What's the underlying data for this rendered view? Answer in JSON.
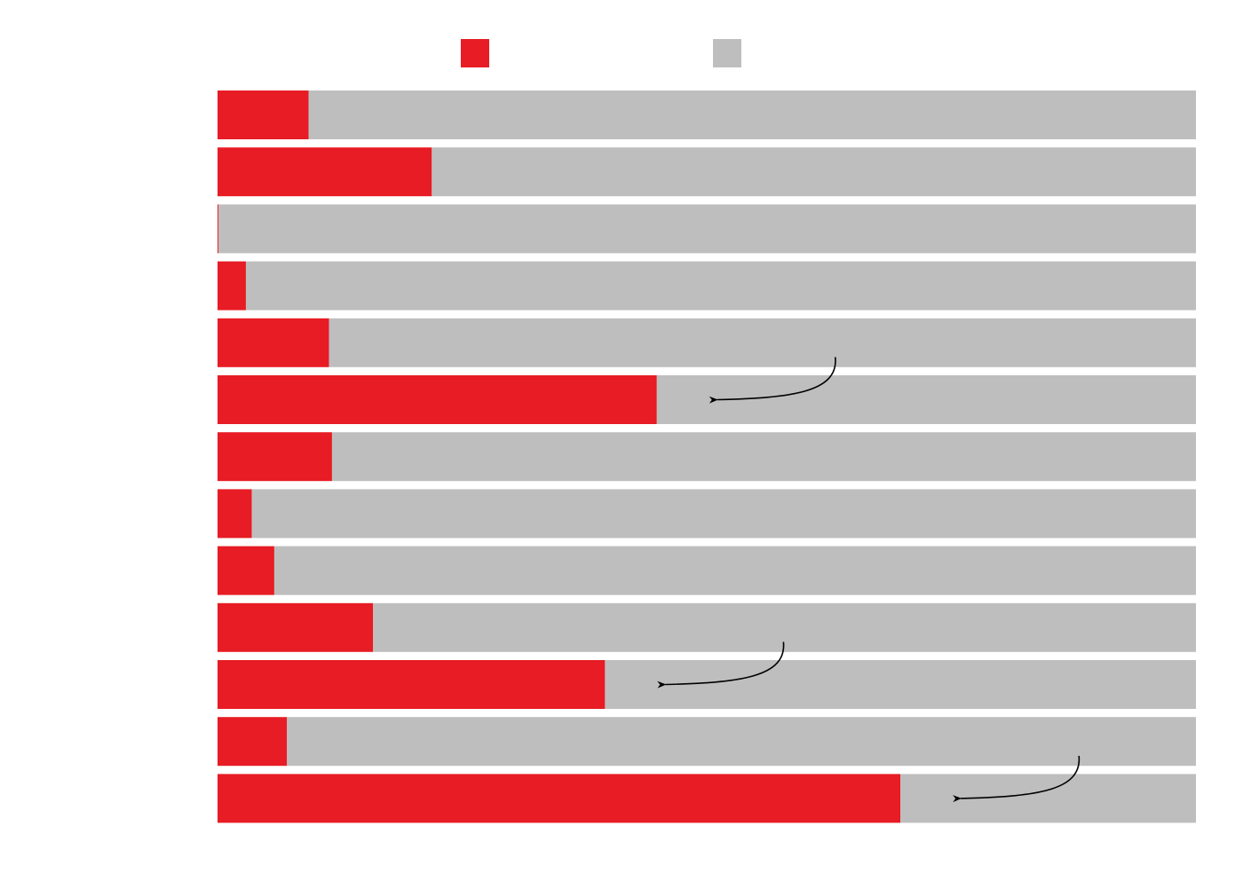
{
  "colors": {
    "highlight": "#e71c24",
    "remainder": "#bebebe",
    "arrow": "#000000"
  },
  "chart_data": {
    "type": "bar",
    "stacked": true,
    "orientation": "horizontal",
    "percent_stacked": true,
    "grid": false,
    "legend": {
      "placement": "top-center"
    },
    "xlim": [
      0,
      100
    ],
    "categories": [
      "",
      "",
      "",
      "",
      "",
      "",
      "",
      "",
      "",
      "",
      "",
      "",
      ""
    ],
    "series": [
      {
        "values": [
          9.3,
          21.9,
          0.1,
          2.9,
          11.4,
          44.9,
          11.7,
          3.5,
          5.8,
          15.9,
          39.6,
          7.1,
          69.8
        ],
        "color_key": "highlight"
      },
      {
        "values": [
          90.7,
          78.1,
          99.9,
          97.1,
          88.6,
          55.1,
          88.3,
          96.5,
          94.2,
          84.1,
          60.4,
          92.9,
          30.2
        ],
        "color_key": "remainder"
      }
    ],
    "annotations": [
      {
        "type": "arrow",
        "category_index": 5,
        "points_to": "end-of-highlight-bar"
      },
      {
        "type": "arrow",
        "category_index": 10,
        "points_to": "end-of-highlight-bar"
      },
      {
        "type": "arrow",
        "category_index": 12,
        "points_to": "end-of-highlight-bar"
      }
    ]
  }
}
